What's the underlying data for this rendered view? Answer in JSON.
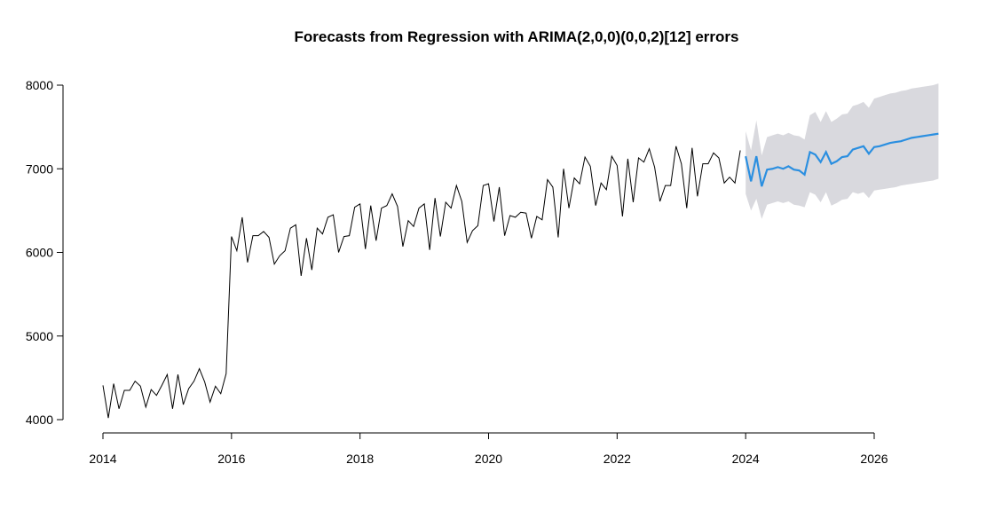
{
  "chart_data": {
    "type": "line",
    "title": "Forecasts from Regression with ARIMA(2,0,0)(0,0,2)[12] errors",
    "xlabel": "",
    "ylabel": "",
    "xlim": [
      2014,
      2027
    ],
    "ylim": [
      4000,
      8000
    ],
    "x_ticks": [
      2014,
      2016,
      2018,
      2020,
      2022,
      2024,
      2026
    ],
    "y_ticks": [
      4000,
      5000,
      6000,
      7000,
      8000
    ],
    "x_tick_labels": [
      "2014",
      "2016",
      "2018",
      "2020",
      "2022",
      "2024",
      "2026"
    ],
    "y_tick_labels": [
      "4000",
      "5000",
      "6000",
      "7000",
      "8000"
    ],
    "grid": false,
    "colors": {
      "history": "#000000",
      "forecast": "#2b8fe0",
      "interval": "#d9d9de"
    },
    "series": [
      {
        "name": "history",
        "start": 2014.0,
        "frequency": 12,
        "values": [
          4410,
          4020,
          4430,
          4130,
          4350,
          4350,
          4460,
          4400,
          4150,
          4360,
          4290,
          4410,
          4540,
          4130,
          4540,
          4180,
          4370,
          4460,
          4610,
          4450,
          4210,
          4400,
          4310,
          4550,
          6190,
          6020,
          6420,
          5880,
          6200,
          6200,
          6250,
          6180,
          5860,
          5960,
          6020,
          6290,
          6330,
          5720,
          6170,
          5790,
          6290,
          6220,
          6420,
          6450,
          6000,
          6190,
          6200,
          6540,
          6580,
          6040,
          6560,
          6140,
          6530,
          6560,
          6700,
          6550,
          6070,
          6380,
          6310,
          6530,
          6580,
          6030,
          6650,
          6190,
          6600,
          6530,
          6800,
          6610,
          6120,
          6260,
          6320,
          6800,
          6820,
          6370,
          6780,
          6200,
          6440,
          6420,
          6480,
          6470,
          6170,
          6430,
          6390,
          6870,
          6780,
          6180,
          7000,
          6530,
          6890,
          6820,
          7140,
          7030,
          6560,
          6830,
          6750,
          7150,
          7040,
          6430,
          7120,
          6600,
          7130,
          7080,
          7240,
          7020,
          6610,
          6800,
          6800,
          7270,
          7060,
          6530,
          7250,
          6670,
          7060,
          7060,
          7190,
          7130,
          6830,
          6900,
          6830,
          7220
        ]
      },
      {
        "name": "forecast",
        "start": 2024.0,
        "frequency": 12,
        "values": [
          7150,
          6850,
          7150,
          6790,
          6990,
          7000,
          7020,
          7000,
          7030,
          6990,
          6980,
          6930,
          7200,
          7170,
          7080,
          7200,
          7060,
          7090,
          7140,
          7150,
          7230,
          7250,
          7270,
          7180,
          7260,
          7270,
          7290,
          7310,
          7320,
          7330,
          7350,
          7370,
          7380,
          7390,
          7400,
          7410,
          7420
        ],
        "lower_95": [
          6700,
          6500,
          6640,
          6400,
          6570,
          6590,
          6610,
          6590,
          6610,
          6570,
          6560,
          6540,
          6720,
          6690,
          6600,
          6720,
          6560,
          6590,
          6630,
          6640,
          6720,
          6700,
          6720,
          6650,
          6740,
          6750,
          6760,
          6770,
          6780,
          6800,
          6810,
          6820,
          6830,
          6840,
          6850,
          6860,
          6880
        ],
        "upper_95": [
          7450,
          7220,
          7580,
          7160,
          7380,
          7400,
          7420,
          7400,
          7430,
          7400,
          7390,
          7350,
          7640,
          7680,
          7560,
          7690,
          7560,
          7600,
          7650,
          7660,
          7750,
          7770,
          7800,
          7730,
          7840,
          7860,
          7880,
          7900,
          7910,
          7930,
          7940,
          7960,
          7970,
          7980,
          7990,
          8000,
          8020
        ]
      }
    ]
  }
}
